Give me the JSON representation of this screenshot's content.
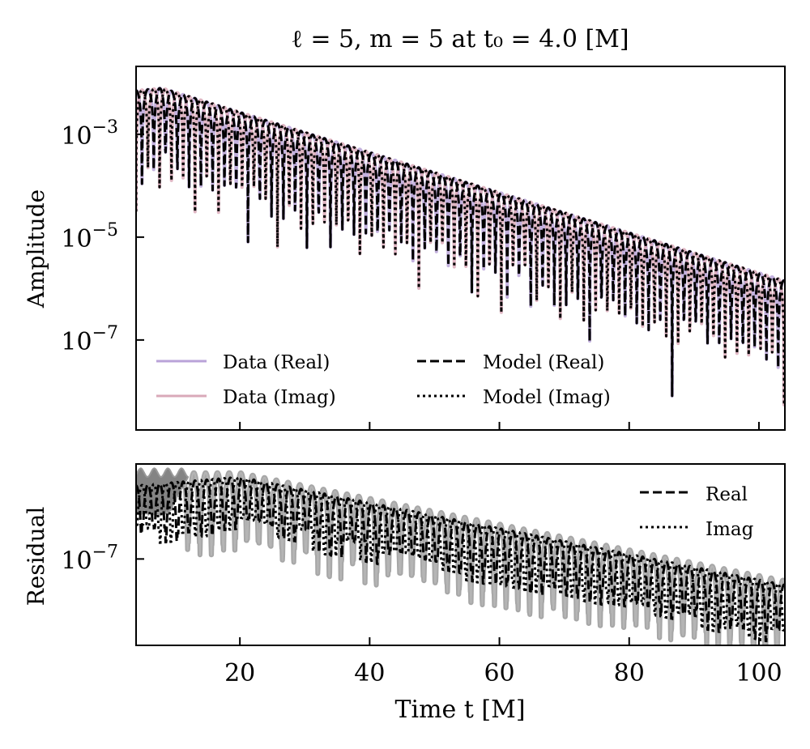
{
  "chart_data": [
    {
      "panel": "amplitude",
      "type": "line",
      "title": "ℓ = 5, m = 5 at t₀ = 4.0 [M]",
      "xlabel": "",
      "ylabel": "Amplitude",
      "xlim": [
        4,
        104
      ],
      "ylim_log10": [
        -8.75,
        -1.68
      ],
      "yscale": "log",
      "yticks": [
        {
          "value_log10": -3,
          "label_base": "10",
          "label_exp": "−3"
        },
        {
          "value_log10": -5,
          "label_base": "10",
          "label_exp": "−5"
        },
        {
          "value_log10": -7,
          "label_base": "10",
          "label_exp": "−7"
        }
      ],
      "xticks": [
        20,
        40,
        60,
        80,
        100
      ],
      "xtick_labels_visible": false,
      "grid": false,
      "legend": {
        "placement": "lower-left",
        "columns": 2,
        "entries": [
          {
            "label": "Data (Real)",
            "style": "solid",
            "color": "#b9a3d8"
          },
          {
            "label": "Data (Imag)",
            "style": "solid",
            "color": "#d9a9b9"
          },
          {
            "label": "Model (Real)",
            "style": "dashed",
            "color": "#000000"
          },
          {
            "label": "Model (Imag)",
            "style": "dotted",
            "color": "#000000"
          }
        ]
      },
      "series": [
        {
          "name": "Data (Real)",
          "part": "real",
          "color": "#b9a3d8",
          "style": "solid",
          "envelope_log10_at_t": {
            "t": [
              4,
              8,
              104
            ],
            "log10_amp": [
              -2.15,
              -2.1,
              -5.85
            ]
          },
          "omega": 1.73
        },
        {
          "name": "Data (Imag)",
          "part": "imag",
          "color": "#d9a9b9",
          "style": "solid",
          "envelope_log10_at_t": {
            "t": [
              4,
              8,
              104
            ],
            "log10_amp": [
              -2.15,
              -2.1,
              -5.85
            ]
          },
          "omega": 1.73
        },
        {
          "name": "Model (Real)",
          "part": "real",
          "color": "#000000",
          "style": "dashed",
          "envelope_log10_at_t": {
            "t": [
              4,
              8,
              104
            ],
            "log10_amp": [
              -2.15,
              -2.1,
              -5.85
            ]
          },
          "omega": 1.73
        },
        {
          "name": "Model (Imag)",
          "part": "imag",
          "color": "#000000",
          "style": "dotted",
          "envelope_log10_at_t": {
            "t": [
              4,
              8,
              104
            ],
            "log10_amp": [
              -2.15,
              -2.1,
              -5.85
            ]
          },
          "omega": 1.73
        }
      ],
      "notable_minima": [
        {
          "t": 5.0,
          "log10_amp": -5.1
        },
        {
          "t": 24.0,
          "log10_amp": -6.75
        },
        {
          "t": 55.0,
          "log10_amp": -8.25
        },
        {
          "t": 87.0,
          "log10_amp": -8.7
        }
      ]
    },
    {
      "panel": "residual",
      "type": "line",
      "title": "",
      "xlabel": "Time t [M]",
      "ylabel": "Residual",
      "xlim": [
        4,
        104
      ],
      "ylim_log10": [
        -8.0,
        -5.9
      ],
      "yscale": "log",
      "yticks": [
        {
          "value_log10": -7,
          "label_base": "10",
          "label_exp": "−7"
        }
      ],
      "xticks": [
        20,
        40,
        60,
        80,
        100
      ],
      "xtick_labels": [
        "20",
        "40",
        "60",
        "80",
        "100"
      ],
      "grid": false,
      "legend": {
        "placement": "top-right",
        "columns": 1,
        "entries": [
          {
            "label": "Real",
            "style": "dashed",
            "color": "#000000"
          },
          {
            "label": "Imag",
            "style": "dotted",
            "color": "#000000"
          }
        ]
      },
      "series": [
        {
          "name": "Real",
          "style": "dashed",
          "color": "#000000",
          "envelope_log10_at_t": {
            "t": [
              4,
              12,
              20,
              104
            ],
            "log10_amp": [
              -6.15,
              -6.1,
              -6.05,
              -7.3
            ]
          }
        },
        {
          "name": "Imag",
          "style": "dotted",
          "color": "#000000",
          "envelope_log10_at_t": {
            "t": [
              4,
              12,
              20,
              104
            ],
            "log10_amp": [
              -6.15,
              -6.1,
              -6.05,
              -7.3
            ]
          }
        },
        {
          "name": "Uncertainty band",
          "style": "band",
          "color": "#808080",
          "envelope_log10_at_t": {
            "t": [
              4,
              12,
              20,
              104
            ],
            "log10_amp": [
              -6.0,
              -6.0,
              -6.0,
              -7.25
            ]
          }
        }
      ]
    }
  ]
}
